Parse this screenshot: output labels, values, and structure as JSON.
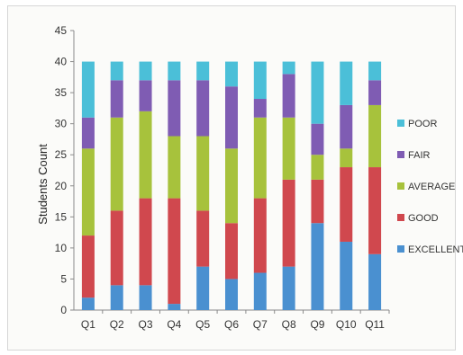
{
  "chart_data": {
    "type": "bar",
    "stacked": true,
    "categories": [
      "Q1",
      "Q2",
      "Q3",
      "Q4",
      "Q5",
      "Q6",
      "Q7",
      "Q8",
      "Q9",
      "Q10",
      "Q11"
    ],
    "series": [
      {
        "name": "EXCELLENT",
        "color": "#4a90d0",
        "values": [
          2,
          4,
          4,
          1,
          7,
          5,
          6,
          7,
          14,
          11,
          9
        ]
      },
      {
        "name": "GOOD",
        "color": "#d0484e",
        "values": [
          10,
          12,
          14,
          17,
          9,
          9,
          12,
          14,
          7,
          12,
          14
        ]
      },
      {
        "name": "AVERAGE",
        "color": "#a7c23c",
        "values": [
          14,
          15,
          14,
          10,
          12,
          12,
          13,
          10,
          4,
          3,
          10
        ]
      },
      {
        "name": "FAIR",
        "color": "#7f5cb3",
        "values": [
          5,
          6,
          5,
          9,
          9,
          10,
          3,
          7,
          5,
          7,
          4
        ]
      },
      {
        "name": "POOR",
        "color": "#4bbfd8",
        "values": [
          9,
          3,
          3,
          3,
          3,
          4,
          6,
          2,
          10,
          7,
          3
        ]
      }
    ],
    "title": "",
    "xlabel": "",
    "ylabel": "Students Count",
    "ylim": [
      0,
      45
    ],
    "yticks": [
      0,
      5,
      10,
      15,
      20,
      25,
      30,
      35,
      40,
      45
    ],
    "grid": false,
    "legend": "right",
    "legend_order": [
      "POOR",
      "FAIR",
      "AVERAGE",
      "GOOD",
      "EXCELLENT"
    ]
  }
}
